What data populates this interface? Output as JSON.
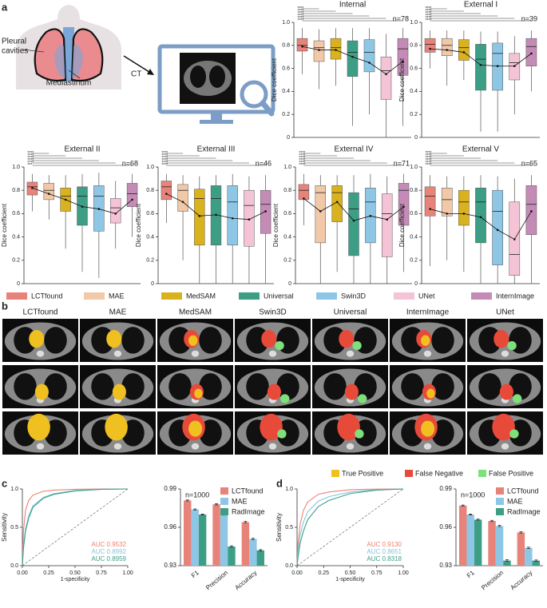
{
  "panel_labels": [
    "a",
    "b",
    "c",
    "d"
  ],
  "illustration": {
    "pleural_cavities": [
      "Pleural",
      "cavities"
    ],
    "mediastinum": "Mediastinum",
    "ct": "CT"
  },
  "models": [
    {
      "name": "LCTfound",
      "color": "#e8837a"
    },
    {
      "name": "MAE",
      "color": "#f1c8a8"
    },
    {
      "name": "MedSAM",
      "color": "#d9b21e"
    },
    {
      "name": "Universal",
      "color": "#3d9e86"
    },
    {
      "name": "Swin3D",
      "color": "#8ec7e6"
    },
    {
      "name": "UNet",
      "color": "#f4c3d6"
    },
    {
      "name": "InternImage",
      "color": "#c48bb7"
    }
  ],
  "panel_b": {
    "columns": [
      "LCTfound",
      "MAE",
      "MedSAM",
      "Swin3D",
      "Universal",
      "InternImage",
      "UNet"
    ],
    "legend": [
      {
        "name": "True Positive",
        "color": "#f0c020"
      },
      {
        "name": "False Negative",
        "color": "#e84a3a"
      },
      {
        "name": "False Positive",
        "color": "#7ee07a"
      }
    ]
  },
  "chart_data": [
    {
      "type": "box",
      "title": "Internal",
      "annotation": "n=78",
      "ylabel": "Dice coefficient",
      "ylim": [
        0,
        1
      ],
      "yticks": [
        0,
        0.2,
        0.4,
        0.6,
        0.8,
        {
          "value": 1,
          "label": "1.0"
        }
      ],
      "significance": [
        "****",
        "****",
        "****",
        "****",
        "****",
        "****"
      ],
      "low": [
        0.55,
        0.42,
        0.45,
        0.1,
        0.2,
        0,
        0.1
      ],
      "q1": [
        0.75,
        0.66,
        0.68,
        0.53,
        0.57,
        0.33,
        0.54
      ],
      "median": [
        0.8,
        0.78,
        0.78,
        0.74,
        0.74,
        0.58,
        0.77
      ],
      "q3": [
        0.86,
        0.84,
        0.86,
        0.84,
        0.85,
        0.7,
        0.86
      ],
      "high": [
        0.95,
        0.94,
        0.95,
        0.95,
        0.95,
        0.9,
        0.95
      ],
      "mean": [
        0.79,
        0.76,
        0.76,
        0.7,
        0.65,
        0.55,
        0.66
      ]
    },
    {
      "type": "box",
      "title": "External I",
      "annotation": "n=39",
      "ylabel": "Dice coefficient",
      "ylim": [
        0,
        1
      ],
      "yticks": [
        0,
        0.2,
        0.4,
        0.6,
        0.8,
        {
          "value": 1,
          "label": "1.0"
        }
      ],
      "significance": [
        "****",
        "****",
        "****",
        "****",
        "****",
        "****"
      ],
      "low": [
        0.6,
        0.45,
        0.5,
        0.05,
        0.05,
        0.2,
        0.4
      ],
      "q1": [
        0.74,
        0.71,
        0.67,
        0.41,
        0.41,
        0.5,
        0.62
      ],
      "median": [
        0.81,
        0.8,
        0.78,
        0.68,
        0.73,
        0.65,
        0.79
      ],
      "q3": [
        0.86,
        0.86,
        0.85,
        0.81,
        0.82,
        0.73,
        0.86
      ],
      "high": [
        0.93,
        0.93,
        0.93,
        0.92,
        0.92,
        0.88,
        0.93
      ],
      "mean": [
        0.77,
        0.76,
        0.74,
        0.63,
        0.62,
        0.62,
        0.73
      ]
    },
    {
      "type": "box",
      "title": "External II",
      "annotation": "n=68",
      "ylabel": "Dice coefficient",
      "ylim": [
        0,
        1
      ],
      "yticks": [
        0,
        0.2,
        0.4,
        0.6,
        0.8,
        {
          "value": 1,
          "label": "1.0"
        }
      ],
      "significance": [
        "****",
        "****",
        "****",
        "****",
        "****",
        "***"
      ],
      "low": [
        0.62,
        0.55,
        0.3,
        0.1,
        0.05,
        0.3,
        0.4
      ],
      "q1": [
        0.76,
        0.72,
        0.62,
        0.5,
        0.45,
        0.52,
        0.66
      ],
      "median": [
        0.83,
        0.8,
        0.75,
        0.75,
        0.75,
        0.65,
        0.77
      ],
      "q3": [
        0.87,
        0.86,
        0.82,
        0.83,
        0.84,
        0.73,
        0.86
      ],
      "high": [
        0.94,
        0.93,
        0.93,
        0.94,
        0.95,
        0.88,
        0.94
      ],
      "mean": [
        0.82,
        0.77,
        0.72,
        0.66,
        0.64,
        0.6,
        0.72
      ]
    },
    {
      "type": "box",
      "title": "External III",
      "annotation": "n=46",
      "ylabel": "Dice coefficient",
      "ylim": [
        0,
        1
      ],
      "yticks": [
        0,
        0.2,
        0.4,
        0.6,
        0.8,
        {
          "value": 1,
          "label": "1.0"
        }
      ],
      "significance": [
        "****",
        "****",
        "****",
        "****",
        "****",
        "****"
      ],
      "low": [
        0.52,
        0.2,
        0,
        0,
        0,
        0,
        0
      ],
      "q1": [
        0.72,
        0.62,
        0.33,
        0.33,
        0.33,
        0.32,
        0.43
      ],
      "median": [
        0.83,
        0.8,
        0.73,
        0.73,
        0.7,
        0.67,
        0.68
      ],
      "q3": [
        0.88,
        0.85,
        0.81,
        0.84,
        0.84,
        0.8,
        0.8
      ],
      "high": [
        0.94,
        0.93,
        0.92,
        0.93,
        0.94,
        0.92,
        0.93
      ],
      "mean": [
        0.77,
        0.7,
        0.58,
        0.59,
        0.56,
        0.55,
        0.62
      ]
    },
    {
      "type": "box",
      "title": "External IV",
      "annotation": "n=71",
      "ylabel": "Dice coefficient",
      "ylim": [
        0,
        1
      ],
      "yticks": [
        0,
        0.2,
        0.4,
        0.6,
        0.8,
        {
          "value": 1,
          "label": "1.0"
        }
      ],
      "significance": [
        "****",
        "****",
        "****",
        "****",
        "****",
        "****"
      ],
      "low": [
        0.5,
        0,
        0.1,
        0,
        0,
        0,
        0.1
      ],
      "q1": [
        0.72,
        0.35,
        0.53,
        0.24,
        0.35,
        0.23,
        0.5
      ],
      "median": [
        0.8,
        0.78,
        0.78,
        0.64,
        0.7,
        0.6,
        0.8
      ],
      "q3": [
        0.85,
        0.84,
        0.84,
        0.78,
        0.82,
        0.77,
        0.86
      ],
      "high": [
        0.94,
        0.93,
        0.93,
        0.93,
        0.94,
        0.92,
        0.94
      ],
      "mean": [
        0.73,
        0.62,
        0.7,
        0.54,
        0.58,
        0.55,
        0.66
      ]
    },
    {
      "type": "box",
      "title": "External V",
      "annotation": "n=65",
      "ylabel": "Dice coefficient",
      "ylim": [
        0,
        1
      ],
      "yticks": [
        0,
        0.2,
        0.4,
        0.6,
        0.8,
        {
          "value": 1,
          "label": "1.0"
        }
      ],
      "significance": [
        "****",
        "****",
        "****",
        "****",
        "****",
        "****"
      ],
      "low": [
        0.15,
        0.2,
        0.1,
        0,
        0,
        0,
        0
      ],
      "q1": [
        0.58,
        0.58,
        0.5,
        0.35,
        0.16,
        0.07,
        0.42
      ],
      "median": [
        0.75,
        0.72,
        0.7,
        0.7,
        0.62,
        0.25,
        0.68
      ],
      "q3": [
        0.83,
        0.82,
        0.8,
        0.82,
        0.8,
        0.7,
        0.84
      ],
      "high": [
        0.93,
        0.92,
        0.92,
        0.93,
        0.92,
        0.9,
        0.93
      ],
      "mean": [
        0.64,
        0.6,
        0.6,
        0.57,
        0.46,
        0.38,
        0.62
      ]
    },
    {
      "type": "roc",
      "xlabel": "1-specificity",
      "ylabel": "Sensitivity",
      "xlim": [
        0,
        1
      ],
      "ylim": [
        0,
        1
      ],
      "xticks": [
        {
          "value": 0,
          "label": "0.00"
        },
        0.25,
        {
          "value": 0.5,
          "label": "0.50"
        },
        0.75,
        {
          "value": 1,
          "label": "1.00"
        }
      ],
      "yticks": [
        {
          "value": 0,
          "label": "0.0"
        },
        0.5,
        {
          "value": 1,
          "label": "1.0"
        }
      ],
      "x": [
        0,
        0.01,
        0.03,
        0.06,
        0.1,
        0.2,
        0.3,
        0.5,
        0.75,
        1
      ],
      "series": [
        {
          "label": "AUC 0.9532",
          "color": "#f0806f",
          "values": [
            0,
            0.45,
            0.72,
            0.85,
            0.92,
            0.97,
            0.985,
            0.995,
            0.999,
            1
          ]
        },
        {
          "label": "AUC 0.8992",
          "color": "#7fc6e0",
          "values": [
            0,
            0.25,
            0.48,
            0.65,
            0.78,
            0.89,
            0.94,
            0.98,
            0.995,
            1
          ]
        },
        {
          "label": "AUC 0.8959",
          "color": "#3d9e86",
          "values": [
            0,
            0.22,
            0.45,
            0.62,
            0.76,
            0.88,
            0.93,
            0.975,
            0.995,
            1
          ]
        }
      ]
    },
    {
      "type": "bar",
      "annotation": "n=1000",
      "categories": [
        "F1",
        "Precision",
        "Accuracy"
      ],
      "ylim": [
        0.93,
        0.99
      ],
      "yticks": [
        0.93,
        0.96,
        0.99
      ],
      "series": [
        {
          "name": "LCTfound",
          "color": "#e8837a",
          "values": [
            0.981,
            0.978,
            0.964
          ],
          "errors": [
            0.0004,
            0.0005,
            0.0006
          ]
        },
        {
          "name": "MAE",
          "color": "#8ec7e6",
          "values": [
            0.974,
            0.97,
            0.951
          ],
          "errors": [
            0.0004,
            0.0005,
            0.0006
          ]
        },
        {
          "name": "RadImage",
          "color": "#3d9e86",
          "values": [
            0.97,
            0.945,
            0.942
          ],
          "errors": [
            0.0004,
            0.0006,
            0.0006
          ]
        }
      ]
    },
    {
      "type": "roc",
      "xlabel": "1-specificity",
      "ylabel": "Sensitivity",
      "xlim": [
        0,
        1
      ],
      "ylim": [
        0,
        1
      ],
      "xticks": [
        {
          "value": 0,
          "label": "0.00"
        },
        0.25,
        {
          "value": 0.5,
          "label": "0.50"
        },
        0.75,
        {
          "value": 1,
          "label": "1.00"
        }
      ],
      "yticks": [
        {
          "value": 0,
          "label": "0.0"
        },
        0.5,
        {
          "value": 1,
          "label": "1.0"
        }
      ],
      "x": [
        0,
        0.01,
        0.03,
        0.06,
        0.1,
        0.2,
        0.3,
        0.5,
        0.75,
        1
      ],
      "series": [
        {
          "label": "AUC 0.9130",
          "color": "#f0806f",
          "values": [
            0,
            0.3,
            0.55,
            0.72,
            0.83,
            0.93,
            0.96,
            0.99,
            0.998,
            1
          ]
        },
        {
          "label": "AUC 0.8651",
          "color": "#7fc6e0",
          "values": [
            0,
            0.2,
            0.4,
            0.57,
            0.7,
            0.84,
            0.9,
            0.96,
            0.99,
            1
          ]
        },
        {
          "label": "AUC 0.8318",
          "color": "#3d9e86",
          "values": [
            0,
            0.12,
            0.3,
            0.45,
            0.6,
            0.77,
            0.85,
            0.94,
            0.985,
            1
          ]
        }
      ]
    },
    {
      "type": "bar",
      "annotation": "n=1000",
      "categories": [
        "F1",
        "Precision",
        "Accuracy"
      ],
      "ylim": [
        0.93,
        0.99
      ],
      "yticks": [
        0.93,
        0.96,
        0.99
      ],
      "series": [
        {
          "name": "LCTfound",
          "color": "#e8837a",
          "values": [
            0.977,
            0.965,
            0.956
          ],
          "errors": [
            0.0004,
            0.0005,
            0.0005
          ]
        },
        {
          "name": "MAE",
          "color": "#8ec7e6",
          "values": [
            0.97,
            0.961,
            0.944
          ],
          "errors": [
            0.0004,
            0.0005,
            0.0005
          ]
        },
        {
          "name": "RadImage",
          "color": "#3d9e86",
          "values": [
            0.966,
            0.934,
            0.934
          ],
          "errors": [
            0.0004,
            0.0006,
            0.0005
          ]
        }
      ]
    }
  ]
}
